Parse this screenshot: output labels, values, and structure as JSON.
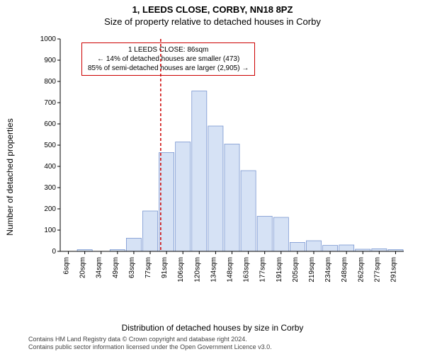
{
  "titles": {
    "main": "1, LEEDS CLOSE, CORBY, NN18 8PZ",
    "sub": "Size of property relative to detached houses in Corby"
  },
  "annotation": {
    "line1": "1 LEEDS CLOSE: 86sqm",
    "line2": "← 14% of detached houses are smaller (473)",
    "line3": "85% of semi-detached houses are larger (2,905) →",
    "border_color": "#cc0000"
  },
  "chart": {
    "type": "histogram",
    "ylabel": "Number of detached properties",
    "xlabel": "Distribution of detached houses by size in Corby",
    "background_color": "#ffffff",
    "bar_fill": "#d6e2f5",
    "bar_stroke": "#6a8acb",
    "refline_x_value": 86,
    "refline_color": "#cc0000",
    "ylim": [
      0,
      1000
    ],
    "ytick_step": 100,
    "x_categories": [
      "6sqm",
      "20sqm",
      "34sqm",
      "49sqm",
      "63sqm",
      "77sqm",
      "91sqm",
      "106sqm",
      "120sqm",
      "134sqm",
      "148sqm",
      "163sqm",
      "177sqm",
      "191sqm",
      "205sqm",
      "219sqm",
      "234sqm",
      "248sqm",
      "262sqm",
      "277sqm",
      "291sqm"
    ],
    "values": [
      0,
      8,
      0,
      8,
      62,
      190,
      465,
      515,
      755,
      590,
      505,
      380,
      165,
      160,
      42,
      50,
      28,
      30,
      10,
      12,
      8
    ]
  },
  "footer": {
    "line1": "Contains HM Land Registry data © Crown copyright and database right 2024.",
    "line2": "Contains public sector information licensed under the Open Government Licence v3.0."
  }
}
